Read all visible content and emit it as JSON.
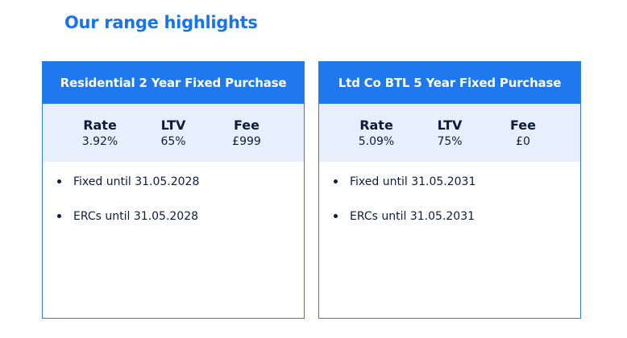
{
  "section": {
    "title": "Our range highlights"
  },
  "products": [
    {
      "name": "Residential 2 Year Fixed Purchase",
      "stats": [
        {
          "label": "Rate",
          "value": "3.92%"
        },
        {
          "label": "LTV",
          "value": "65%"
        },
        {
          "label": "Fee",
          "value": "£999"
        }
      ],
      "features": [
        "Fixed until 31.05.2028",
        "ERCs until 31.05.2028"
      ]
    },
    {
      "name": "Ltd Co BTL 5 Year Fixed Purchase",
      "stats": [
        {
          "label": "Rate",
          "value": "5.09%"
        },
        {
          "label": "LTV",
          "value": "75%"
        },
        {
          "label": "Fee",
          "value": "£0"
        }
      ],
      "features": [
        "Fixed until 31.05.2031",
        "ERCs until 31.05.2031"
      ]
    }
  ],
  "colors": {
    "accent": "#1f78ee",
    "stats_bg": "#e7effc",
    "text": "#0e1b3d",
    "title": "#1a73e8"
  }
}
